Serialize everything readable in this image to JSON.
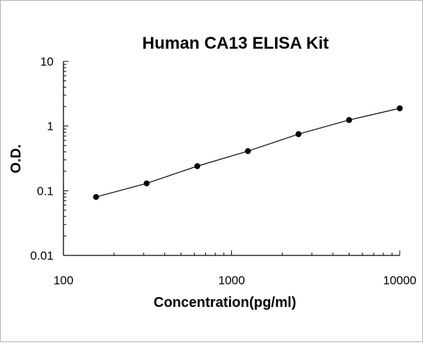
{
  "chart_data": {
    "type": "scatter",
    "title": "Human CA13 ELISA Kit",
    "xlabel": "Concentration(pg/ml)",
    "ylabel": "O.D.",
    "x_scale": "log",
    "y_scale": "log",
    "xlim": [
      100,
      10000
    ],
    "ylim": [
      0.01,
      10
    ],
    "x_ticks": [
      "100",
      "1000",
      "10000"
    ],
    "y_ticks": [
      "0.01",
      "0.1",
      "1",
      "10"
    ],
    "grid": false,
    "legend": "none",
    "series": [
      {
        "x": [
          156.25,
          312.5,
          625,
          1250,
          2500,
          5000,
          10000
        ],
        "y": [
          0.08,
          0.13,
          0.24,
          0.41,
          0.75,
          1.24,
          1.88
        ],
        "fit_line": true
      }
    ]
  },
  "colors": {
    "marker": "#000000",
    "line": "#000000",
    "axis": "#000000"
  }
}
